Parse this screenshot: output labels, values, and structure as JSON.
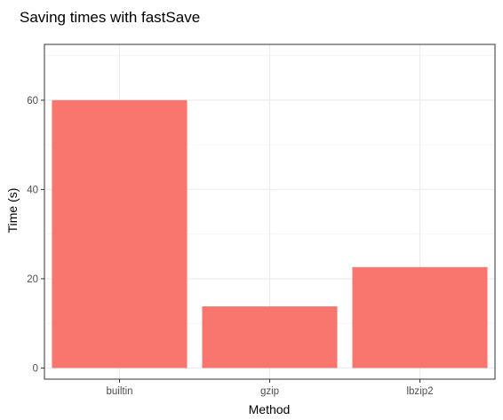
{
  "chart_data": {
    "type": "bar",
    "title": "Saving times with fastSave",
    "xlabel": "Method",
    "ylabel": "Time (s)",
    "categories": [
      "builtin",
      "gzip",
      "lbzip2"
    ],
    "values": [
      60,
      13.8,
      22.6
    ],
    "ylim": [
      -2.5,
      72.5
    ],
    "yticks": [
      0,
      20,
      40,
      60
    ],
    "bar_color": "#F8766D",
    "grid": true,
    "legend": "none"
  }
}
